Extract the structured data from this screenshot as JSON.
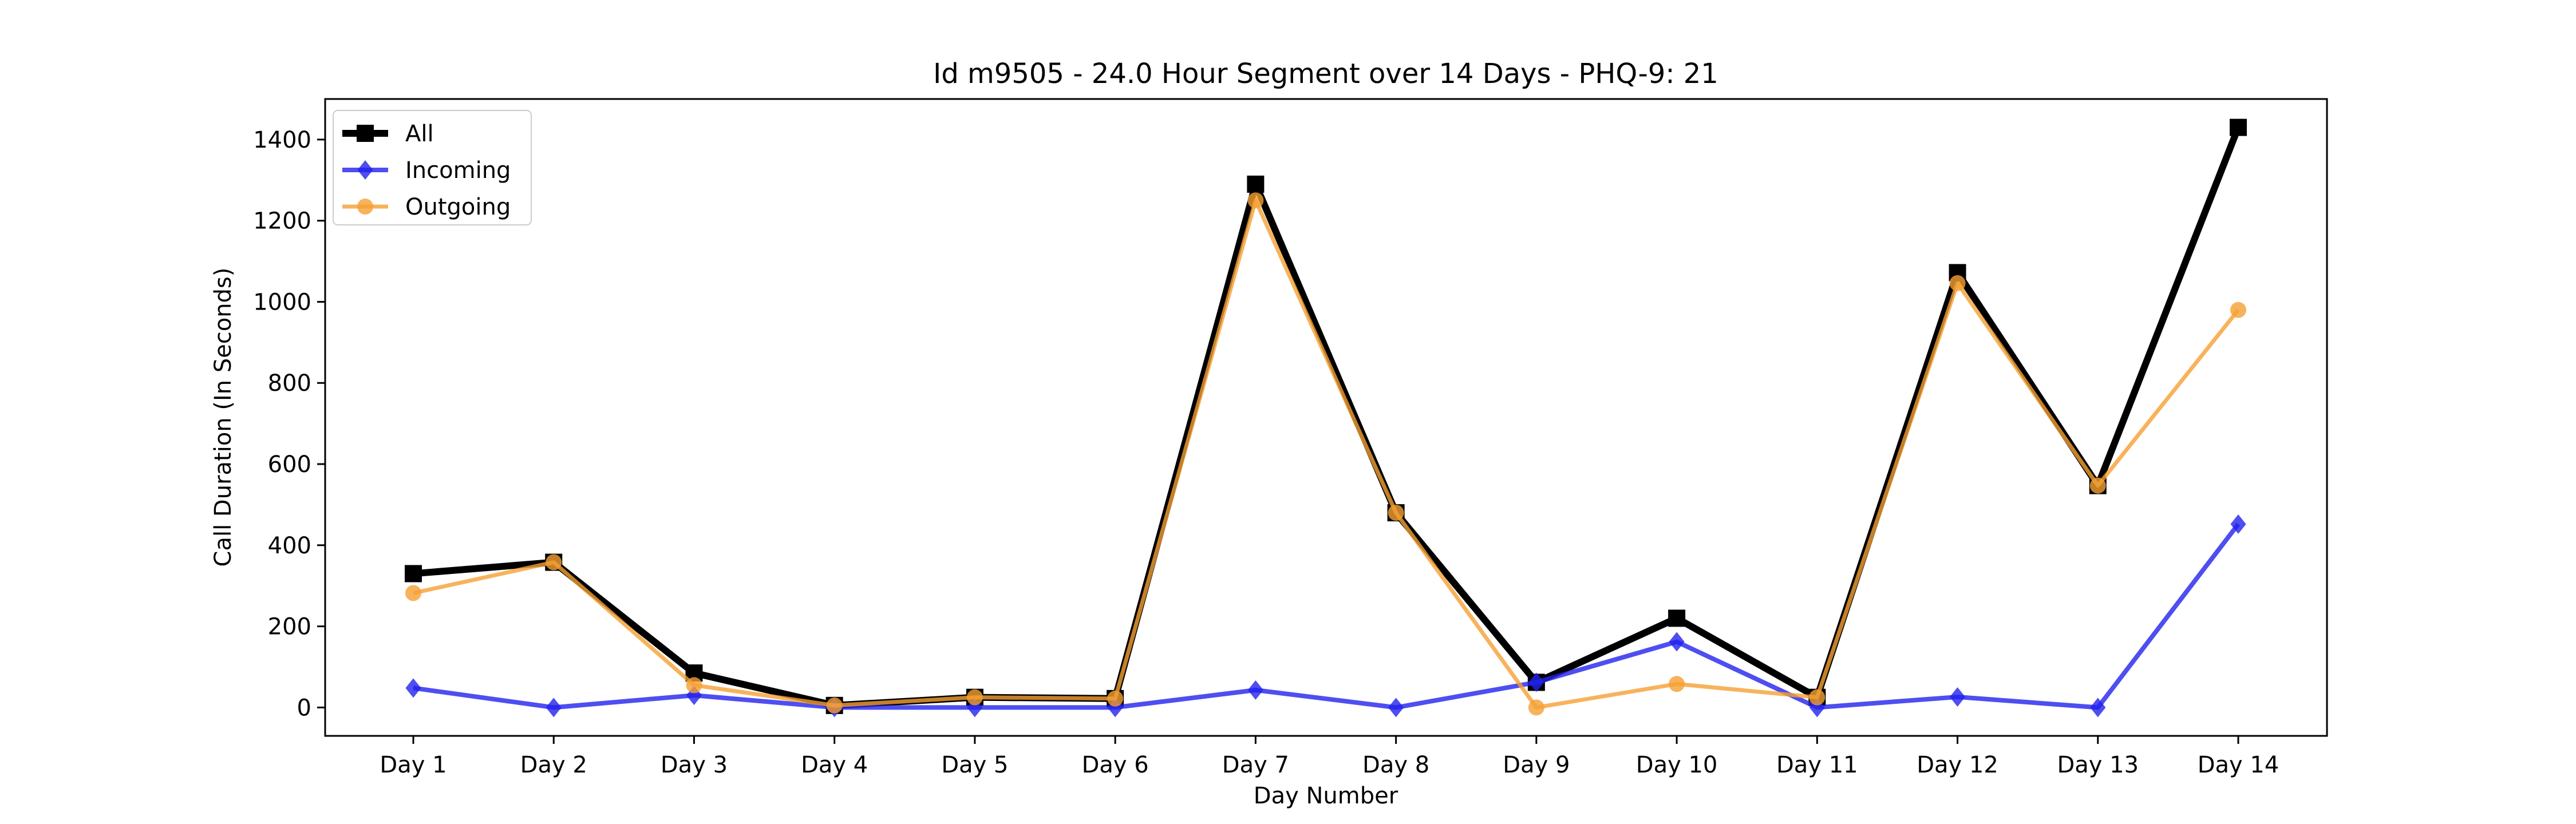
{
  "chart_data": {
    "type": "line",
    "title": "Id m9505 - 24.0 Hour Segment over 14 Days - PHQ-9: 21",
    "xlabel": "Day Number",
    "ylabel": "Call Duration (In Seconds)",
    "categories": [
      "Day 1",
      "Day 2",
      "Day 3",
      "Day 4",
      "Day 5",
      "Day 6",
      "Day 7",
      "Day 8",
      "Day 9",
      "Day 10",
      "Day 11",
      "Day 12",
      "Day 13",
      "Day 14"
    ],
    "ylim": [
      -70,
      1500
    ],
    "yticks": [
      0,
      200,
      400,
      600,
      800,
      1000,
      1200,
      1400
    ],
    "legend_position": "top-left",
    "grid": false,
    "series": [
      {
        "name": "All",
        "color": "#000000",
        "marker": "square",
        "values": [
          330,
          358,
          85,
          5,
          25,
          22,
          1290,
          480,
          62,
          220,
          25,
          1072,
          547,
          1430
        ]
      },
      {
        "name": "Incoming",
        "color": "#2222ee",
        "marker": "diamond",
        "values": [
          48,
          0,
          30,
          0,
          0,
          0,
          43,
          0,
          62,
          162,
          0,
          26,
          0,
          452
        ]
      },
      {
        "name": "Outgoing",
        "color": "#f5a033",
        "marker": "circle",
        "values": [
          282,
          358,
          55,
          5,
          25,
          22,
          1250,
          480,
          0,
          58,
          25,
          1046,
          547,
          980
        ]
      }
    ]
  }
}
